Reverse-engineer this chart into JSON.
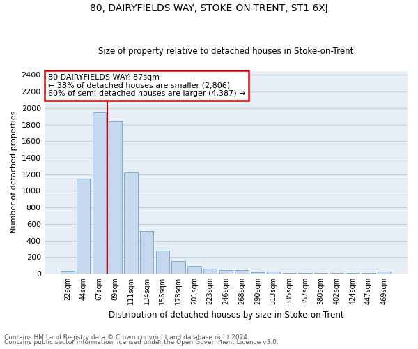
{
  "title1": "80, DAIRYFIELDS WAY, STOKE-ON-TRENT, ST1 6XJ",
  "title2": "Size of property relative to detached houses in Stoke-on-Trent",
  "xlabel": "Distribution of detached houses by size in Stoke-on-Trent",
  "ylabel": "Number of detached properties",
  "footnote1": "Contains HM Land Registry data © Crown copyright and database right 2024.",
  "footnote2": "Contains public sector information licensed under the Open Government Licence v3.0.",
  "bar_labels": [
    "22sqm",
    "44sqm",
    "67sqm",
    "89sqm",
    "111sqm",
    "134sqm",
    "156sqm",
    "178sqm",
    "201sqm",
    "223sqm",
    "246sqm",
    "268sqm",
    "290sqm",
    "313sqm",
    "335sqm",
    "357sqm",
    "380sqm",
    "402sqm",
    "424sqm",
    "447sqm",
    "469sqm"
  ],
  "bar_values": [
    30,
    1150,
    1950,
    1840,
    1220,
    510,
    280,
    150,
    90,
    60,
    45,
    38,
    20,
    25,
    10,
    8,
    6,
    5,
    5,
    5,
    25
  ],
  "bar_color": "#c5d8ee",
  "bar_edge_color": "#6fa8d0",
  "vline_color": "#cc0000",
  "ylim": [
    0,
    2450
  ],
  "yticks": [
    0,
    200,
    400,
    600,
    800,
    1000,
    1200,
    1400,
    1600,
    1800,
    2000,
    2200,
    2400
  ],
  "annotation_title": "80 DAIRYFIELDS WAY: 87sqm",
  "annotation_line1": "← 38% of detached houses are smaller (2,806)",
  "annotation_line2": "60% of semi-detached houses are larger (4,387) →",
  "annotation_box_color": "#cc0000",
  "annotation_box_fill": "#ffffff",
  "grid_color": "#c8d0dc",
  "bg_color": "#e8eef6"
}
